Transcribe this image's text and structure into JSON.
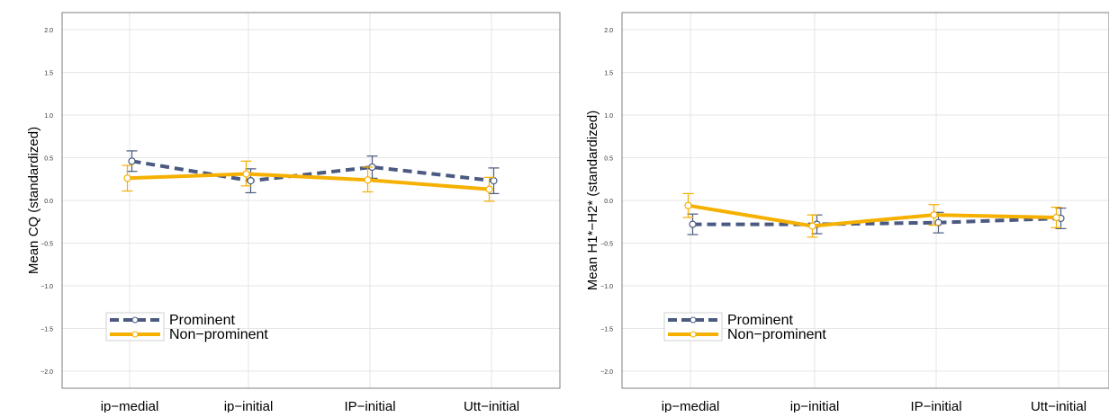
{
  "chart_data": [
    {
      "type": "line",
      "ylabel": "Mean CQ (standardized)",
      "categories": [
        "ip−medial",
        "ip−initial",
        "IP−initial",
        "Utt−initial"
      ],
      "yticks": [
        "−2.0",
        "−1.5",
        "−1.0",
        "−0.5",
        "0.0",
        "0.5",
        "1.0",
        "1.5",
        "2.0"
      ],
      "ylim": [
        -2.2,
        2.2
      ],
      "grid": true,
      "legend_position": "bottom-left",
      "series": [
        {
          "name": "Prominent",
          "color": "#4a5a80",
          "style": "dashed",
          "values": [
            0.46,
            0.23,
            0.39,
            0.23
          ],
          "ci_low": [
            0.34,
            0.09,
            0.26,
            0.08
          ],
          "ci_high": [
            0.58,
            0.37,
            0.52,
            0.38
          ]
        },
        {
          "name": "Non−prominent",
          "color": "#f5b000",
          "style": "solid",
          "values": [
            0.26,
            0.31,
            0.24,
            0.13
          ],
          "ci_low": [
            0.11,
            0.17,
            0.1,
            -0.01
          ],
          "ci_high": [
            0.41,
            0.46,
            0.39,
            0.27
          ]
        }
      ]
    },
    {
      "type": "line",
      "ylabel": "Mean H1*−H2* (standardized)",
      "categories": [
        "ip−medial",
        "ip−initial",
        "IP−initial",
        "Utt−initial"
      ],
      "yticks": [
        "−2.0",
        "−1.5",
        "−1.0",
        "−0.5",
        "0.0",
        "0.5",
        "1.0",
        "1.5",
        "2.0"
      ],
      "ylim": [
        -2.2,
        2.2
      ],
      "grid": true,
      "legend_position": "bottom-left",
      "series": [
        {
          "name": "Prominent",
          "color": "#4a5a80",
          "style": "dashed",
          "values": [
            -0.28,
            -0.28,
            -0.26,
            -0.21
          ],
          "ci_low": [
            -0.4,
            -0.39,
            -0.38,
            -0.33
          ],
          "ci_high": [
            -0.16,
            -0.17,
            -0.14,
            -0.09
          ]
        },
        {
          "name": "Non−prominent",
          "color": "#f5b000",
          "style": "solid",
          "values": [
            -0.06,
            -0.3,
            -0.17,
            -0.2
          ],
          "ci_low": [
            -0.2,
            -0.43,
            -0.29,
            -0.32
          ],
          "ci_high": [
            0.08,
            -0.17,
            -0.05,
            -0.08
          ]
        }
      ]
    }
  ]
}
